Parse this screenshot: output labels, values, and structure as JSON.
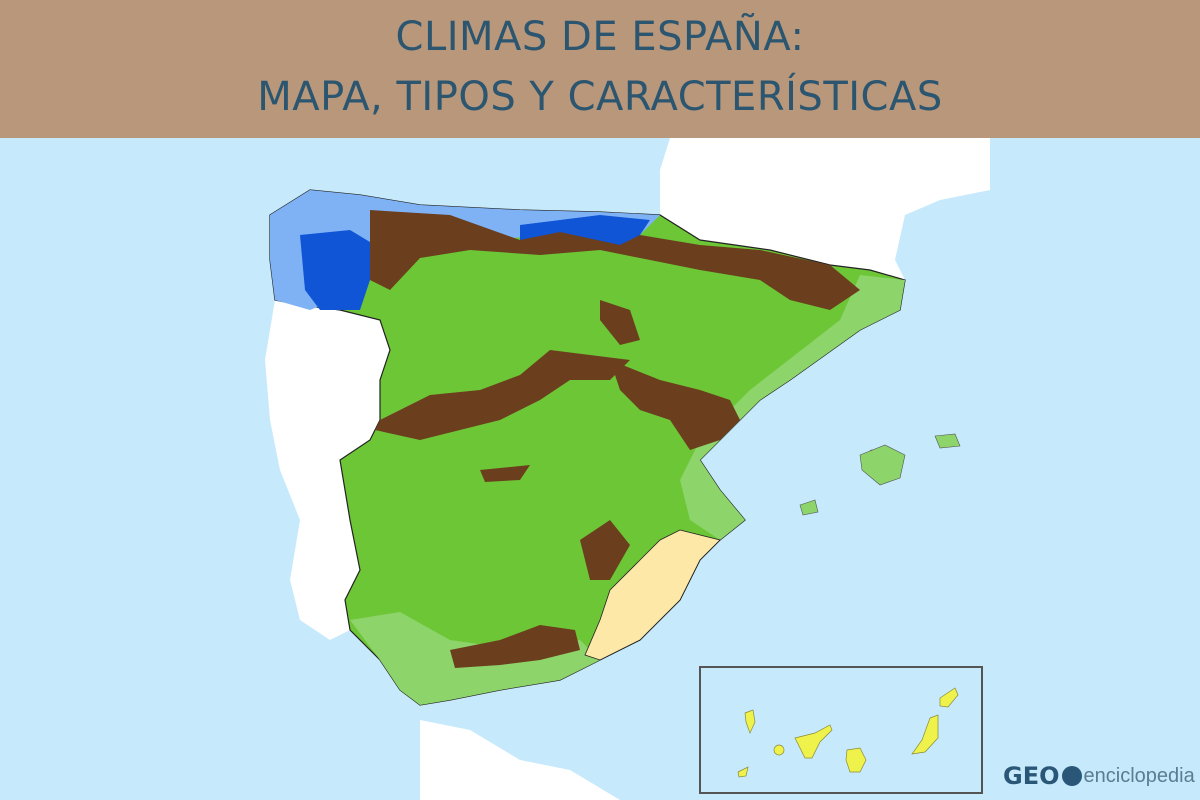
{
  "header": {
    "title_line1": "CLIMAS DE ESPAÑA:",
    "title_line2": "MAPA, TIPOS Y CARACTERÍSTICAS"
  },
  "map": {
    "region": "Spain",
    "inset": "Canary Islands",
    "colors": {
      "sea": "#c6eafb",
      "neighbor_land": "#ffffff",
      "mediterranean_continental": "#6dc636",
      "mediterranean_coastal": "#8dd46a",
      "mountain": "#6b3e1e",
      "oceanic": "#7fb2f5",
      "oceanic_humid": "#0f55d6",
      "semi_arid": "#fde8a8",
      "subtropical": "#eef24a",
      "header_bg": "#b8977b",
      "title": "#2c5670"
    }
  },
  "logo": {
    "brand_bold": "GEO",
    "brand_light": "enciclopedia",
    "icon": "globe-icon"
  }
}
